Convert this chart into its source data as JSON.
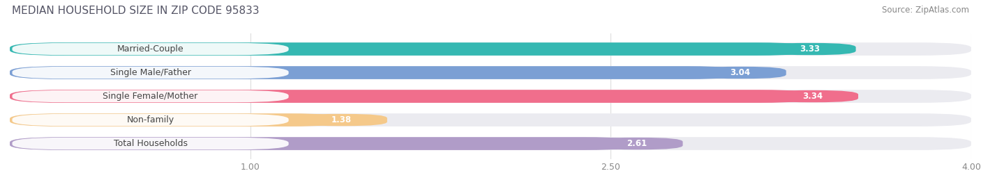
{
  "title": "MEDIAN HOUSEHOLD SIZE IN ZIP CODE 95833",
  "source": "Source: ZipAtlas.com",
  "categories": [
    "Married-Couple",
    "Single Male/Father",
    "Single Female/Mother",
    "Non-family",
    "Total Households"
  ],
  "values": [
    3.33,
    3.04,
    3.34,
    1.38,
    2.61
  ],
  "bar_colors": [
    "#35b8b2",
    "#7b9fd4",
    "#f06e8c",
    "#f5c98a",
    "#b09cc8"
  ],
  "xlim": [
    0.0,
    4.0
  ],
  "xticks": [
    1.0,
    2.5,
    4.0
  ],
  "background_color": "#ffffff",
  "bar_background_color": "#ebebf0",
  "title_fontsize": 11,
  "source_fontsize": 8.5,
  "label_fontsize": 9,
  "value_fontsize": 8.5
}
